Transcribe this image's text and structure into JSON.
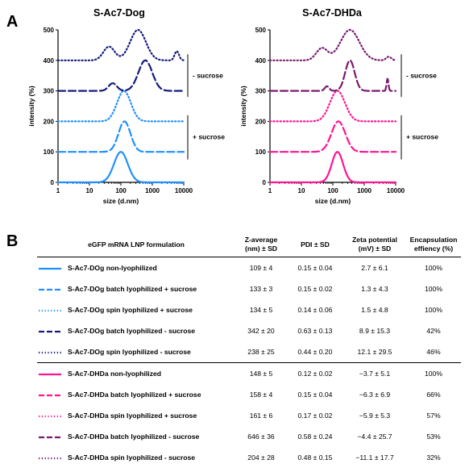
{
  "panel_a_label": "A",
  "panel_b_label": "B",
  "charts": {
    "left": {
      "title": "S-Ac7-Dog",
      "color_base": "#1e90ff",
      "color_dark": "#141a7a"
    },
    "right": {
      "title": "S-Ac7-DHDa",
      "color_base": "#ff1493",
      "color_dark": "#7a1a6e"
    }
  },
  "labels": {
    "minus_sucrose": "- sucrose",
    "plus_sucrose": "+ sucrose"
  },
  "chart_data": [
    {
      "type": "line",
      "title": "S-Ac7-Dog",
      "xlabel": "size (d.nm)",
      "ylabel": "intensity (%)",
      "xscale": "log",
      "xlim": [
        1,
        10000
      ],
      "ylim": [
        0,
        500
      ],
      "xticks": [
        "1",
        "10",
        "100",
        "1000",
        "10000"
      ],
      "yticks": [
        "0",
        "100",
        "200",
        "300",
        "400",
        "500"
      ],
      "series": [
        {
          "style": "solid",
          "color": "#1e90ff",
          "offset": 0,
          "peaks": [
            {
              "center": 100,
              "height": 100,
              "sigma": 0.22
            }
          ]
        },
        {
          "style": "dashed",
          "color": "#1e90ff",
          "offset": 100,
          "peaks": [
            {
              "center": 130,
              "height": 100,
              "sigma": 0.19
            }
          ]
        },
        {
          "style": "dotted",
          "color": "#1e90ff",
          "offset": 200,
          "peaks": [
            {
              "center": 125,
              "height": 100,
              "sigma": 0.22
            }
          ]
        },
        {
          "style": "dashed",
          "color": "#141a7a",
          "offset": 300,
          "peaks": [
            {
              "center": 55,
              "height": 25,
              "sigma": 0.13
            },
            {
              "center": 600,
              "height": 100,
              "sigma": 0.22
            }
          ]
        },
        {
          "style": "dotted",
          "color": "#141a7a",
          "offset": 400,
          "peaks": [
            {
              "center": 42,
              "height": 45,
              "sigma": 0.18
            },
            {
              "center": 350,
              "height": 100,
              "sigma": 0.25
            },
            {
              "center": 6000,
              "height": 30,
              "sigma": 0.07
            }
          ]
        }
      ]
    },
    {
      "type": "line",
      "title": "S-Ac7-DHDa",
      "xlabel": "size (d.nm)",
      "ylabel": "intensity (%)",
      "xscale": "log",
      "xlim": [
        1,
        10000
      ],
      "ylim": [
        0,
        500
      ],
      "xticks": [
        "1",
        "10",
        "100",
        "1000",
        "10000"
      ],
      "yticks": [
        "0",
        "100",
        "200",
        "300",
        "400",
        "500"
      ],
      "series": [
        {
          "style": "solid",
          "color": "#ff1493",
          "offset": 0,
          "peaks": [
            {
              "center": 140,
              "height": 100,
              "sigma": 0.18
            }
          ]
        },
        {
          "style": "dashed",
          "color": "#ff1493",
          "offset": 100,
          "peaks": [
            {
              "center": 150,
              "height": 100,
              "sigma": 0.22
            }
          ]
        },
        {
          "style": "dotted",
          "color": "#ff1493",
          "offset": 200,
          "peaks": [
            {
              "center": 140,
              "height": 100,
              "sigma": 0.24
            }
          ]
        },
        {
          "style": "dashed",
          "color": "#7a1a6e",
          "offset": 300,
          "peaks": [
            {
              "center": 65,
              "height": 15,
              "sigma": 0.07
            },
            {
              "center": 350,
              "height": 100,
              "sigma": 0.15
            },
            {
              "center": 5500,
              "height": 40,
              "sigma": 0.03
            }
          ]
        },
        {
          "style": "dotted",
          "color": "#7a1a6e",
          "offset": 400,
          "peaks": [
            {
              "center": 45,
              "height": 40,
              "sigma": 0.18
            },
            {
              "center": 350,
              "height": 100,
              "sigma": 0.3
            },
            {
              "center": 6000,
              "height": 12,
              "sigma": 0.08
            }
          ]
        }
      ]
    }
  ],
  "table": {
    "headers": [
      "eGFP mRNA LNP formulation",
      "Z-average\n(nm) ± SD",
      "PDI ± SD",
      "Zeta potential\n(mV) ± SD",
      "Encapsulation\neffiency (%)"
    ],
    "rows": [
      {
        "label": "S-Ac7-DOg non-lyophilized",
        "z": "109 ± 4",
        "pdi": "0.15 ± 0.04",
        "zeta": "2.7 ± 6.1",
        "enc": "100%",
        "style": "solid",
        "color": "#1e90ff"
      },
      {
        "label": "S-Ac7-DOg batch lyophilized + sucrose",
        "z": "133 ± 3",
        "pdi": "0.15 ± 0.02",
        "zeta": "1.3 ± 4.3",
        "enc": "100%",
        "style": "dashed",
        "color": "#1e90ff"
      },
      {
        "label": "S-Ac7-DOg spin lyophilized + sucrose",
        "z": "134 ± 5",
        "pdi": "0.14 ± 0.06",
        "zeta": "1.5 ± 4.8",
        "enc": "100%",
        "style": "dotted",
        "color": "#1e90ff"
      },
      {
        "label": "S-Ac7-DOg batch lyophilized - sucrose",
        "z": "342 ± 20",
        "pdi": "0.63 ± 0.13",
        "zeta": "8.9 ± 15.3",
        "enc": "42%",
        "style": "dashed",
        "color": "#141a7a"
      },
      {
        "label": "S-Ac7-DOg spin lyophilized - sucrose",
        "z": "238 ± 25",
        "pdi": "0.44 ± 0.20",
        "zeta": "12.1 ± 29.5",
        "enc": "46%",
        "style": "dotted",
        "color": "#141a7a"
      },
      {
        "label": "S-Ac7-DHDa non-lyophilized",
        "z": "148 ± 5",
        "pdi": "0.12 ± 0.02",
        "zeta": "−3.7 ± 5.1",
        "enc": "100%",
        "style": "solid",
        "color": "#ff1493"
      },
      {
        "label": "S-Ac7-DHDa batch lyophilized + sucrose",
        "z": "158 ± 4",
        "pdi": "0.15 ± 0.04",
        "zeta": "−6.3 ± 6.9",
        "enc": "66%",
        "style": "dashed",
        "color": "#ff1493"
      },
      {
        "label": "S-Ac7-DHDa spin lyophilized + sucrose",
        "z": "161 ± 6",
        "pdi": "0.17 ± 0.02",
        "zeta": "−5.9 ± 5.3",
        "enc": "57%",
        "style": "dotted",
        "color": "#ff1493"
      },
      {
        "label": "S-Ac7-DHDa batch lyophilized - sucrose",
        "z": "646 ± 36",
        "pdi": "0.58 ± 0.24",
        "zeta": "−4.4 ± 25.7",
        "enc": "53%",
        "style": "dashed",
        "color": "#7a1a6e"
      },
      {
        "label": "S-Ac7-DHDa spin lyophilized - sucrose",
        "z": "204 ± 28",
        "pdi": "0.48 ± 0.15",
        "zeta": "−11.1 ± 17.7",
        "enc": "32%",
        "style": "dotted",
        "color": "#7a1a6e"
      }
    ]
  }
}
